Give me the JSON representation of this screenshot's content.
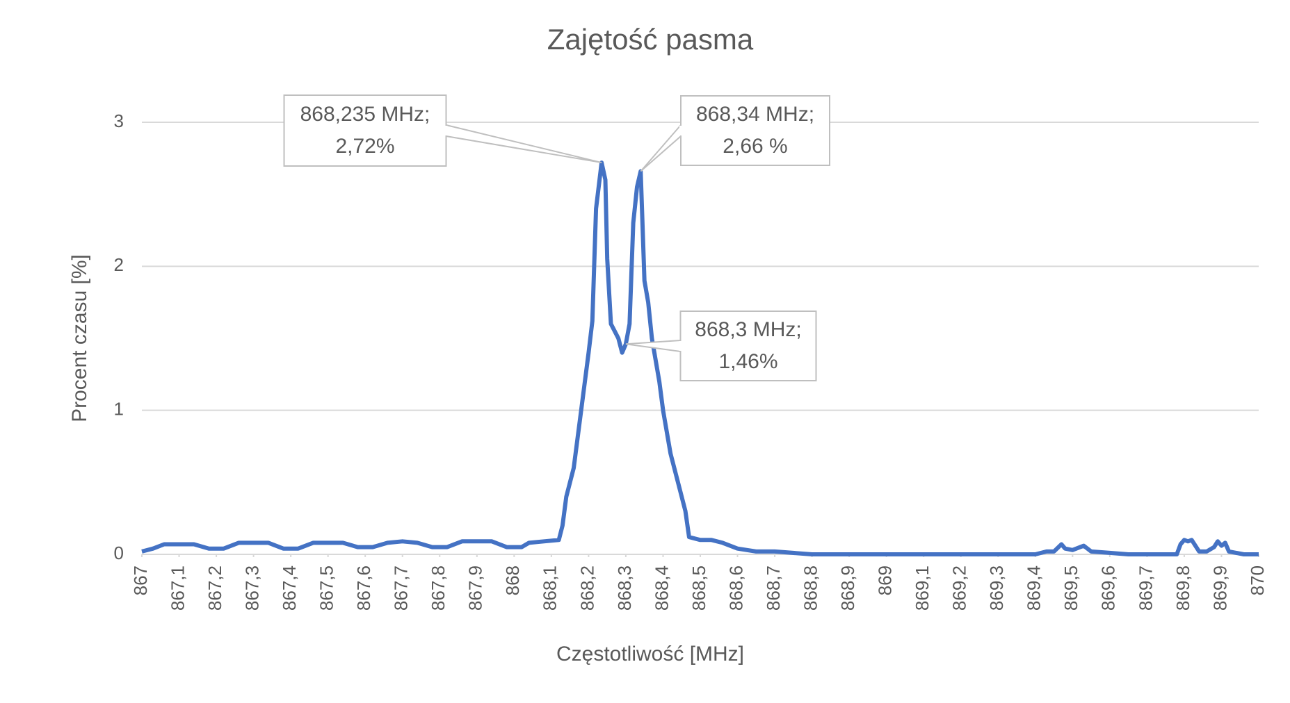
{
  "chart_data": {
    "type": "line",
    "title": "Zajętość pasma",
    "x_label": "Częstotliwość [MHz]",
    "y_label": "Procent czasu [%]",
    "x": [
      867.0,
      867.03,
      867.06,
      867.1,
      867.14,
      867.18,
      867.22,
      867.26,
      867.3,
      867.34,
      867.38,
      867.42,
      867.46,
      867.5,
      867.54,
      867.58,
      867.62,
      867.66,
      867.7,
      867.74,
      867.78,
      867.82,
      867.86,
      867.9,
      867.94,
      867.98,
      868.02,
      868.04,
      868.08,
      868.12,
      868.13,
      868.14,
      868.16,
      868.18,
      868.2,
      868.21,
      868.22,
      868.235,
      868.245,
      868.25,
      868.26,
      868.28,
      868.29,
      868.3,
      868.31,
      868.32,
      868.33,
      868.34,
      868.35,
      868.36,
      868.37,
      868.39,
      868.4,
      868.42,
      868.44,
      868.46,
      868.47,
      868.5,
      868.53,
      868.56,
      868.6,
      868.65,
      868.7,
      868.8,
      869.0,
      869.4,
      869.43,
      869.45,
      869.47,
      869.48,
      869.5,
      869.53,
      869.55,
      869.6,
      869.65,
      869.78,
      869.79,
      869.8,
      869.81,
      869.82,
      869.84,
      869.86,
      869.88,
      869.89,
      869.9,
      869.91,
      869.92,
      869.96,
      870.0
    ],
    "series": [
      {
        "color": "#4472c4",
        "values": [
          0.02,
          0.04,
          0.07,
          0.07,
          0.07,
          0.04,
          0.04,
          0.08,
          0.08,
          0.08,
          0.04,
          0.04,
          0.08,
          0.08,
          0.08,
          0.05,
          0.05,
          0.08,
          0.09,
          0.08,
          0.05,
          0.05,
          0.09,
          0.09,
          0.09,
          0.05,
          0.05,
          0.08,
          0.09,
          0.1,
          0.2,
          0.4,
          0.6,
          1.0,
          1.4,
          1.62,
          2.4,
          2.72,
          2.6,
          2.05,
          1.6,
          1.5,
          1.4,
          1.46,
          1.6,
          2.3,
          2.55,
          2.66,
          1.9,
          1.75,
          1.5,
          1.2,
          1.0,
          0.7,
          0.5,
          0.3,
          0.12,
          0.1,
          0.1,
          0.08,
          0.04,
          0.02,
          0.02,
          0.0,
          0.0,
          0.0,
          0.02,
          0.02,
          0.07,
          0.04,
          0.03,
          0.06,
          0.02,
          0.01,
          0.0,
          0.0,
          0.07,
          0.1,
          0.09,
          0.1,
          0.02,
          0.02,
          0.05,
          0.09,
          0.06,
          0.08,
          0.02,
          0.0,
          0.0
        ]
      }
    ],
    "xlim": [
      867,
      870
    ],
    "xticks": [
      867,
      {
        "value": 867.1,
        "label": "867,1"
      },
      {
        "value": 867.2,
        "label": "867,2"
      },
      {
        "value": 867.3,
        "label": "867,3"
      },
      {
        "value": 867.4,
        "label": "867,4"
      },
      {
        "value": 867.5,
        "label": "867,5"
      },
      {
        "value": 867.6,
        "label": "867,6"
      },
      {
        "value": 867.7,
        "label": "867,7"
      },
      {
        "value": 867.8,
        "label": "867,8"
      },
      {
        "value": 867.9,
        "label": "867,9"
      },
      868,
      {
        "value": 868.1,
        "label": "868,1"
      },
      {
        "value": 868.2,
        "label": "868,2"
      },
      {
        "value": 868.3,
        "label": "868,3"
      },
      {
        "value": 868.4,
        "label": "868,4"
      },
      {
        "value": 868.5,
        "label": "868,5"
      },
      {
        "value": 868.6,
        "label": "868,6"
      },
      {
        "value": 868.7,
        "label": "868,7"
      },
      {
        "value": 868.8,
        "label": "868,8"
      },
      {
        "value": 868.9,
        "label": "868,9"
      },
      869,
      {
        "value": 869.1,
        "label": "869,1"
      },
      {
        "value": 869.2,
        "label": "869,2"
      },
      {
        "value": 869.3,
        "label": "869,3"
      },
      {
        "value": 869.4,
        "label": "869,4"
      },
      {
        "value": 869.5,
        "label": "869,5"
      },
      {
        "value": 869.6,
        "label": "869,6"
      },
      {
        "value": 869.7,
        "label": "869,7"
      },
      {
        "value": 869.8,
        "label": "869,8"
      },
      {
        "value": 869.9,
        "label": "869,9"
      },
      870
    ],
    "ylim": [
      0,
      3
    ],
    "yticks": [
      0,
      1,
      2,
      3
    ],
    "grid": true,
    "annotations": [
      {
        "x": 868.235,
        "y": 2.72,
        "text": [
          "868,235 MHz;",
          "2,72%"
        ]
      },
      {
        "x": 868.34,
        "y": 2.66,
        "text": [
          "868,34 MHz;",
          "2,66 %"
        ]
      },
      {
        "x": 868.3,
        "y": 1.46,
        "text": [
          "868,3 MHz;",
          "1,46%"
        ]
      }
    ]
  }
}
